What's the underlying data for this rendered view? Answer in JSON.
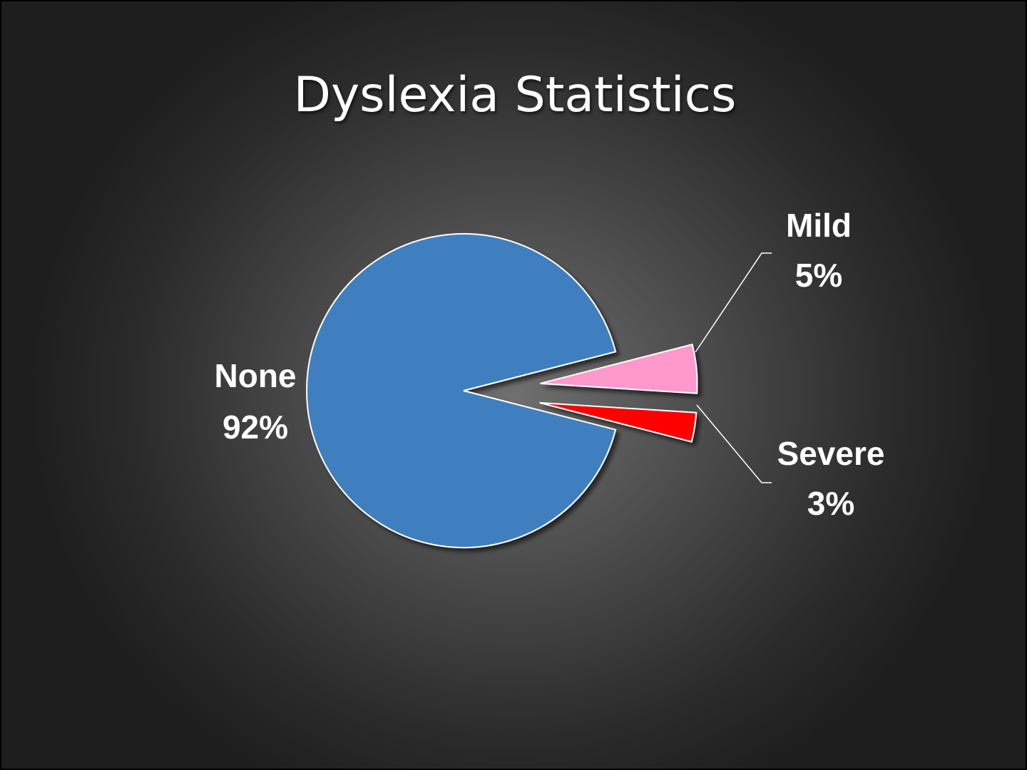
{
  "chart_data": {
    "type": "pie",
    "title": "Dyslexia Statistics",
    "slices": [
      {
        "name": "None",
        "value": 92,
        "label": "92%",
        "color": "#3f7fbf"
      },
      {
        "name": "Mild",
        "value": 5,
        "label": "5%",
        "color": "#ff99cc"
      },
      {
        "name": "Severe",
        "value": 3,
        "label": "3%",
        "color": "#ff0000"
      }
    ]
  }
}
